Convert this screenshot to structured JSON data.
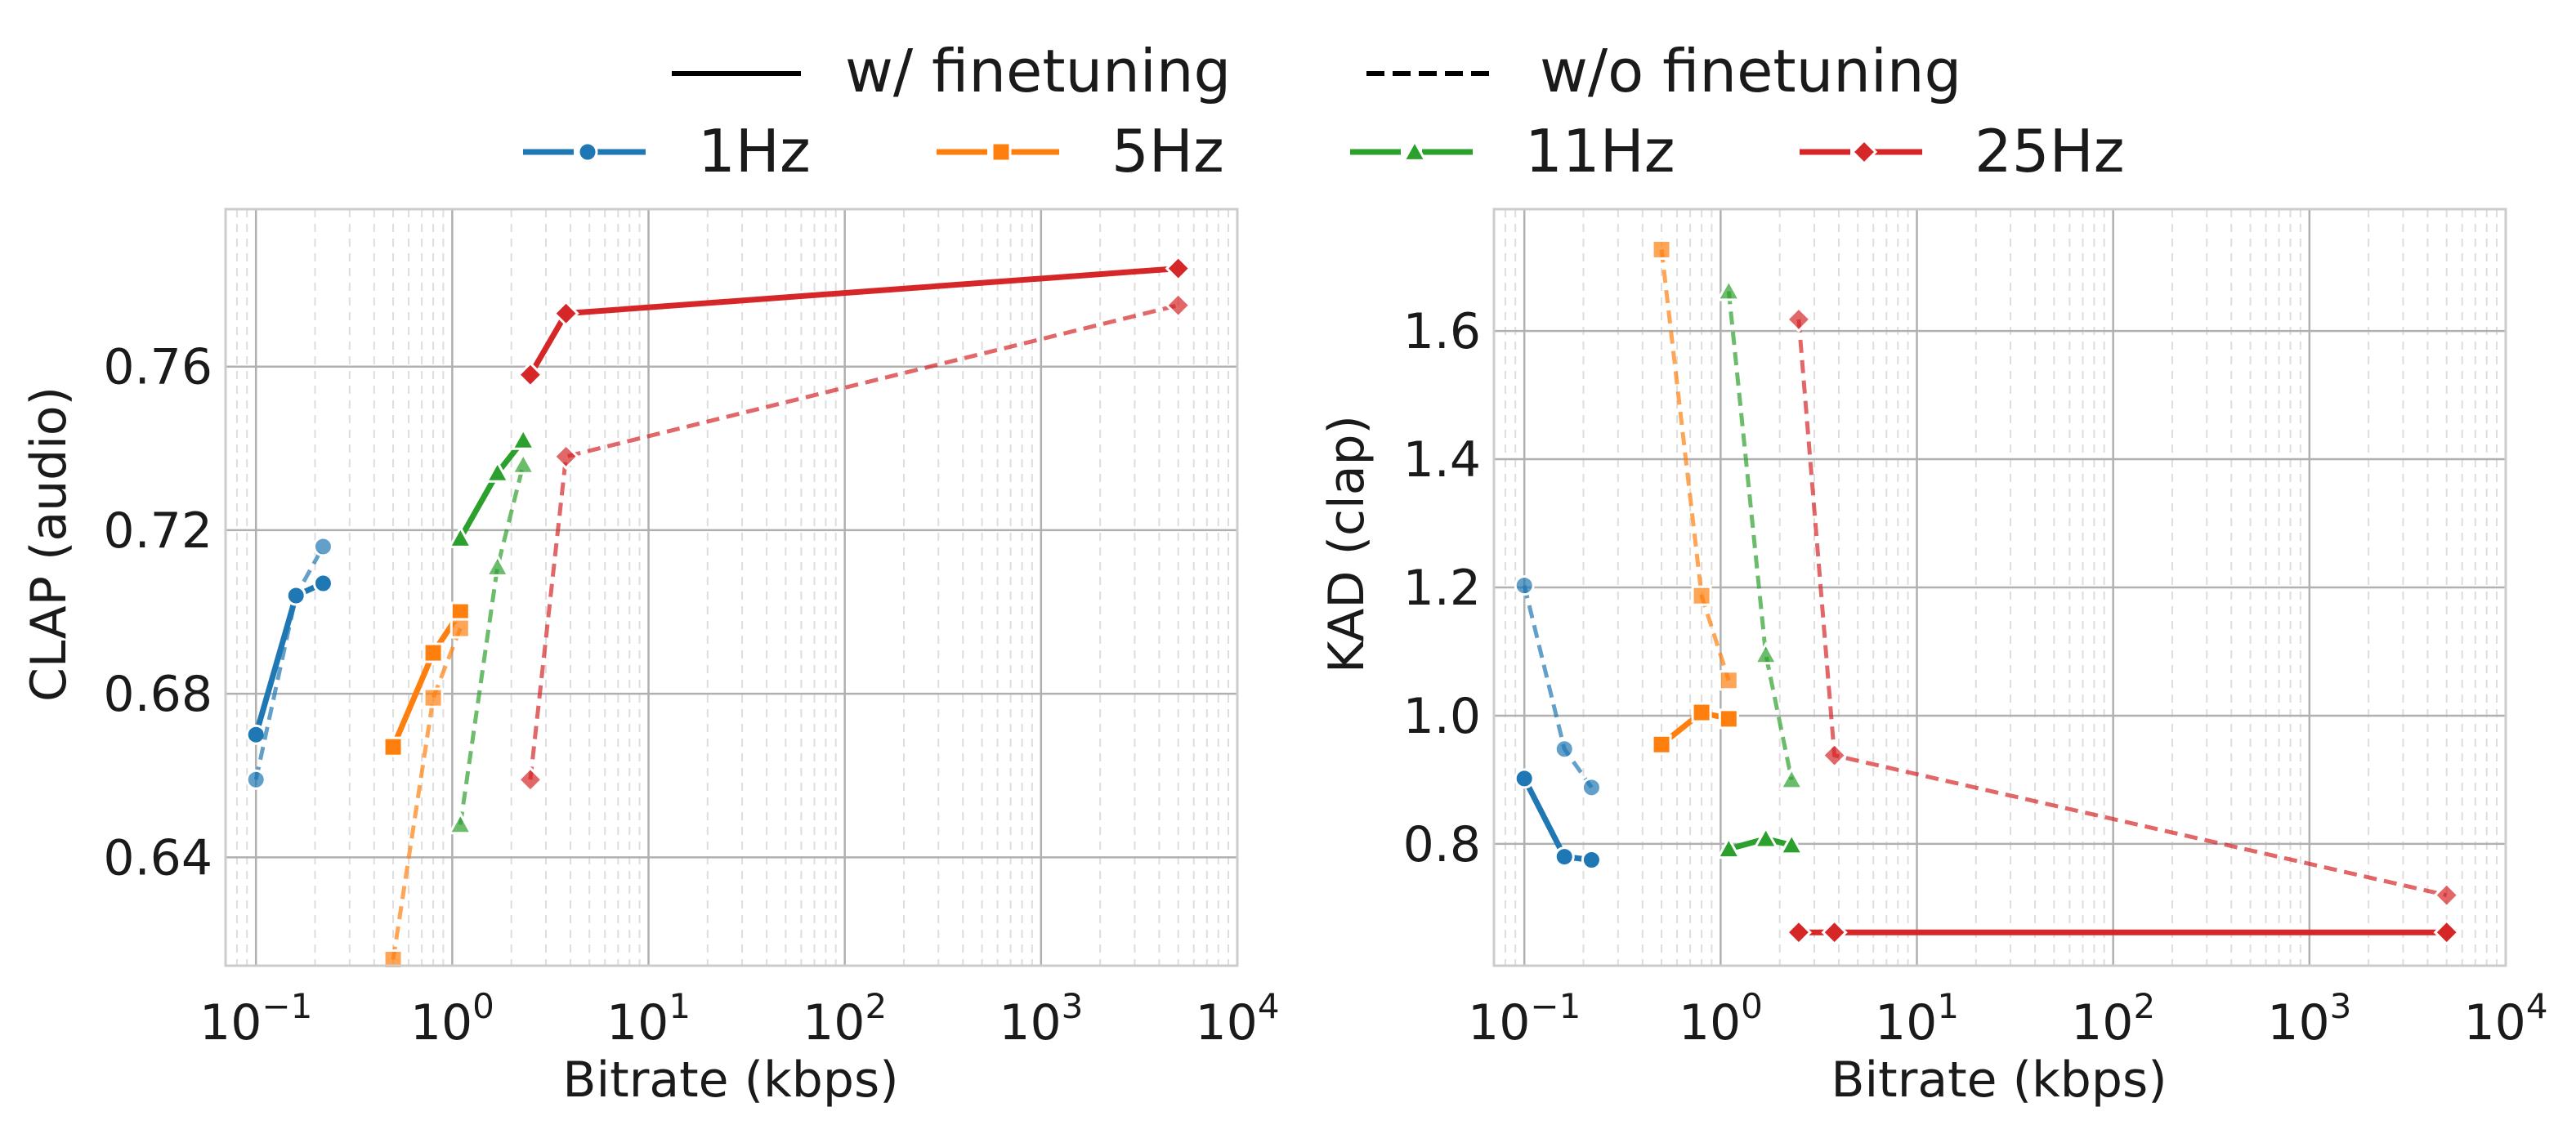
{
  "legend": {
    "style_items": [
      {
        "label": "w/ finetuning",
        "dash": "solid"
      },
      {
        "label": "w/o finetuning",
        "dash": "dashed"
      }
    ],
    "series_items": [
      {
        "label": "1Hz",
        "color": "#1f77b4",
        "marker": "circle"
      },
      {
        "label": "5Hz",
        "color": "#ff7f0e",
        "marker": "square"
      },
      {
        "label": "11Hz",
        "color": "#2ca02c",
        "marker": "triangle"
      },
      {
        "label": "25Hz",
        "color": "#d62728",
        "marker": "diamond"
      }
    ]
  },
  "chart_data": [
    {
      "type": "line",
      "title": "",
      "xlabel": "Bitrate (kbps)",
      "ylabel": "CLAP (audio)",
      "xscale": "log",
      "xlim": [
        0.07,
        10000
      ],
      "ylim": [
        0.6135,
        0.7985
      ],
      "x_ticks": [
        0.1,
        1,
        10,
        100,
        1000,
        10000
      ],
      "x_tick_labels": [
        {
          "base": "10",
          "exp": "−1"
        },
        {
          "base": "10",
          "exp": "0"
        },
        {
          "base": "10",
          "exp": "1"
        },
        {
          "base": "10",
          "exp": "2"
        },
        {
          "base": "10",
          "exp": "3"
        },
        {
          "base": "10",
          "exp": "4"
        }
      ],
      "y_ticks": [
        0.64,
        0.68,
        0.72,
        0.76
      ],
      "y_tick_labels": [
        "0.64",
        "0.68",
        "0.72",
        "0.76"
      ],
      "grid": true,
      "series": [
        {
          "name": "1Hz",
          "finetuned": true,
          "color": "#1f77b4",
          "marker": "circle",
          "x": [
            0.1,
            0.16,
            0.22
          ],
          "y": [
            0.67,
            0.704,
            0.707
          ]
        },
        {
          "name": "1Hz",
          "finetuned": false,
          "color": "#1f77b4",
          "marker": "circle",
          "x": [
            0.1,
            0.16,
            0.22
          ],
          "y": [
            0.659,
            0.704,
            0.716
          ]
        },
        {
          "name": "5Hz",
          "finetuned": true,
          "color": "#ff7f0e",
          "marker": "square",
          "x": [
            0.5,
            0.8,
            1.1
          ],
          "y": [
            0.667,
            0.69,
            0.7
          ]
        },
        {
          "name": "5Hz",
          "finetuned": false,
          "color": "#ff7f0e",
          "marker": "square",
          "x": [
            0.5,
            0.8,
            1.1
          ],
          "y": [
            0.615,
            0.679,
            0.696
          ]
        },
        {
          "name": "11Hz",
          "finetuned": true,
          "color": "#2ca02c",
          "marker": "triangle",
          "x": [
            1.1,
            1.7,
            2.3
          ],
          "y": [
            0.718,
            0.734,
            0.742
          ]
        },
        {
          "name": "11Hz",
          "finetuned": false,
          "color": "#2ca02c",
          "marker": "triangle",
          "x": [
            1.1,
            1.7,
            2.3
          ],
          "y": [
            0.648,
            0.711,
            0.736
          ]
        },
        {
          "name": "25Hz",
          "finetuned": true,
          "color": "#d62728",
          "marker": "diamond",
          "x": [
            2.5,
            3.8,
            5000
          ],
          "y": [
            0.758,
            0.773,
            0.784
          ]
        },
        {
          "name": "25Hz",
          "finetuned": false,
          "color": "#d62728",
          "marker": "diamond",
          "x": [
            2.5,
            3.8,
            5000
          ],
          "y": [
            0.659,
            0.738,
            0.775
          ]
        }
      ]
    },
    {
      "type": "line",
      "title": "",
      "xlabel": "Bitrate (kbps)",
      "ylabel": "KAD (clap)",
      "xscale": "log",
      "xlim": [
        0.07,
        10000
      ],
      "ylim": [
        0.61,
        1.79
      ],
      "x_ticks": [
        0.1,
        1,
        10,
        100,
        1000,
        10000
      ],
      "x_tick_labels": [
        {
          "base": "10",
          "exp": "−1"
        },
        {
          "base": "10",
          "exp": "0"
        },
        {
          "base": "10",
          "exp": "1"
        },
        {
          "base": "10",
          "exp": "2"
        },
        {
          "base": "10",
          "exp": "3"
        },
        {
          "base": "10",
          "exp": "4"
        }
      ],
      "y_ticks": [
        0.8,
        1.0,
        1.2,
        1.4,
        1.6
      ],
      "y_tick_labels": [
        "0.8",
        "1.0",
        "1.2",
        "1.4",
        "1.6"
      ],
      "grid": true,
      "series": [
        {
          "name": "1Hz",
          "finetuned": true,
          "color": "#1f77b4",
          "marker": "circle",
          "x": [
            0.1,
            0.16,
            0.22
          ],
          "y": [
            0.902,
            0.78,
            0.775
          ]
        },
        {
          "name": "1Hz",
          "finetuned": false,
          "color": "#1f77b4",
          "marker": "circle",
          "x": [
            0.1,
            0.16,
            0.22
          ],
          "y": [
            1.203,
            0.948,
            0.888
          ]
        },
        {
          "name": "5Hz",
          "finetuned": true,
          "color": "#ff7f0e",
          "marker": "square",
          "x": [
            0.5,
            0.8,
            1.1
          ],
          "y": [
            0.955,
            1.005,
            0.995
          ]
        },
        {
          "name": "5Hz",
          "finetuned": false,
          "color": "#ff7f0e",
          "marker": "square",
          "x": [
            0.5,
            0.8,
            1.1
          ],
          "y": [
            1.727,
            1.187,
            1.055
          ]
        },
        {
          "name": "11Hz",
          "finetuned": true,
          "color": "#2ca02c",
          "marker": "triangle",
          "x": [
            1.1,
            1.7,
            2.3
          ],
          "y": [
            0.792,
            0.808,
            0.798
          ]
        },
        {
          "name": "11Hz",
          "finetuned": false,
          "color": "#2ca02c",
          "marker": "triangle",
          "x": [
            1.1,
            1.7,
            2.3
          ],
          "y": [
            1.662,
            1.095,
            0.9
          ]
        },
        {
          "name": "25Hz",
          "finetuned": true,
          "color": "#d62728",
          "marker": "diamond",
          "x": [
            2.5,
            3.8,
            5000
          ],
          "y": [
            0.662,
            0.662,
            0.662
          ]
        },
        {
          "name": "25Hz",
          "finetuned": false,
          "color": "#d62728",
          "marker": "diamond",
          "x": [
            2.5,
            3.8,
            5000
          ],
          "y": [
            1.618,
            0.938,
            0.72
          ]
        }
      ]
    }
  ]
}
